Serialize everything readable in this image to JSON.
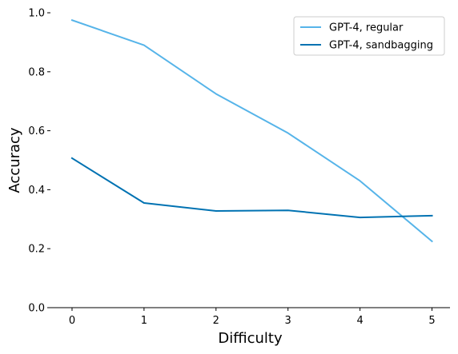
{
  "chart_data": {
    "type": "line",
    "title": "",
    "xlabel": "Difficulty",
    "ylabel": "Accuracy",
    "x": [
      0,
      1,
      2,
      3,
      4,
      5
    ],
    "xticks": [
      "0",
      "1",
      "2",
      "3",
      "4",
      "5"
    ],
    "yticks": [
      "0.0",
      "0.2",
      "0.4",
      "0.6",
      "0.8",
      "1.0"
    ],
    "xlim": [
      -0.3,
      5.25
    ],
    "ylim": [
      0.0,
      1.0
    ],
    "grid": false,
    "legend_position": "top-right",
    "series": [
      {
        "name": "GPT-4, regular",
        "color": "#56b4e9",
        "values": [
          0.975,
          0.89,
          0.725,
          0.592,
          0.43,
          0.225
        ]
      },
      {
        "name": "GPT-4, sandbagging",
        "color": "#0072b2",
        "values": [
          0.507,
          0.355,
          0.328,
          0.33,
          0.306,
          0.312
        ]
      }
    ]
  }
}
